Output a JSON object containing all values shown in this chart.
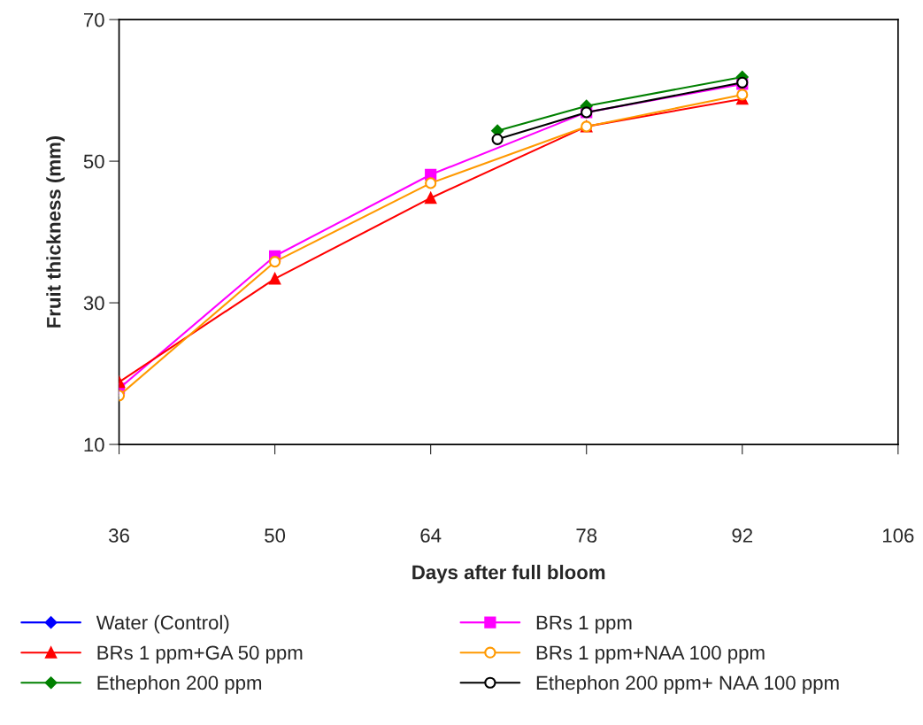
{
  "chart_data": {
    "type": "line",
    "xlabel": "Days after full bloom",
    "ylabel": "Fruit thickness (mm)",
    "xlim": [
      36,
      106
    ],
    "xticks": [
      36,
      50,
      64,
      78,
      92,
      106
    ],
    "ylim": [
      10,
      70
    ],
    "yticks": [
      10,
      30,
      50,
      70
    ],
    "grid": false,
    "legend": "bottom",
    "line_style": "solid",
    "series": [
      {
        "name": "Water (Control)",
        "color": "#0000ff",
        "marker": "diamond"
      },
      {
        "name": "BRs 1 ppm",
        "color": "#ff00ff",
        "marker": "square",
        "x": [
          36,
          50,
          64,
          78,
          92
        ],
        "values": [
          17.9,
          36.6,
          48.1,
          56.9,
          60.9
        ]
      },
      {
        "name": "BRs 1 ppm+GA 50 ppm",
        "color": "#ff0000",
        "marker": "triangle",
        "x": [
          36,
          50,
          64,
          78,
          92
        ],
        "values": [
          18.8,
          33.4,
          44.8,
          54.9,
          58.8
        ]
      },
      {
        "name": "BRs 1 ppm+NAA 100 ppm",
        "color": "#ff9900",
        "marker": "circle",
        "x": [
          36,
          50,
          64,
          78,
          92
        ],
        "values": [
          16.9,
          35.8,
          46.9,
          54.9,
          59.4
        ]
      },
      {
        "name": "Ethephon 200 ppm",
        "color": "#008000",
        "marker": "diamond",
        "x": [
          70,
          78,
          92
        ],
        "values": [
          54.3,
          57.8,
          61.9
        ]
      },
      {
        "name": "Ethephon 200 ppm+ NAA 100 ppm",
        "color": "#000000",
        "marker": "circle",
        "x": [
          70,
          78,
          92
        ],
        "values": [
          53.1,
          56.9,
          61.1
        ]
      }
    ]
  }
}
